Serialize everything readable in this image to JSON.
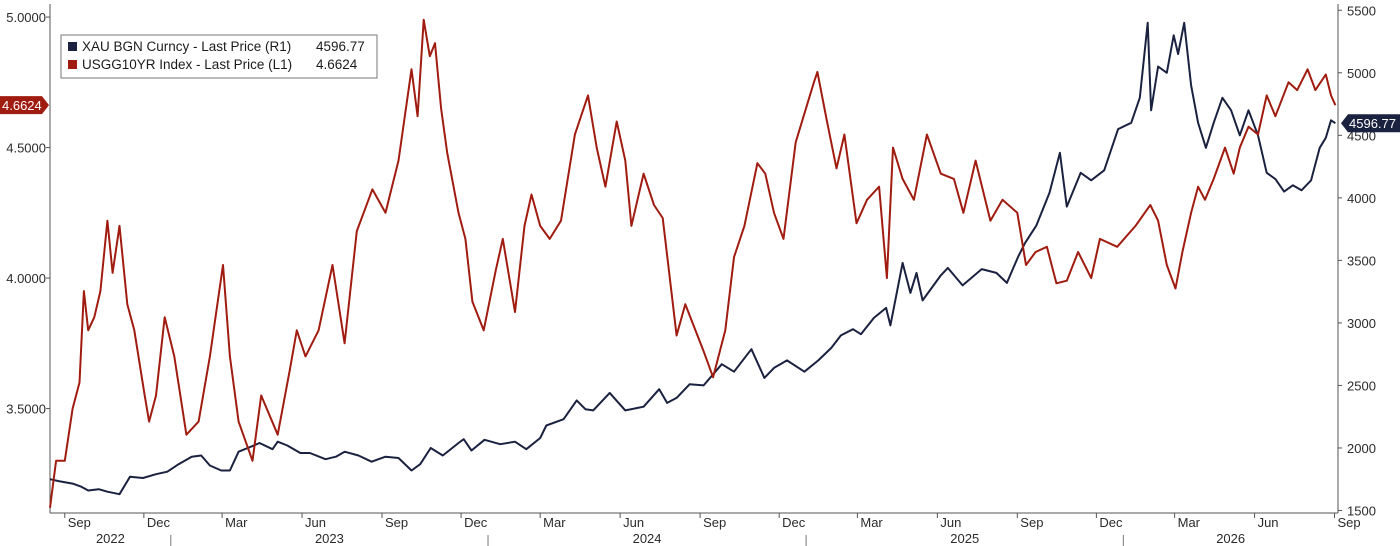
{
  "chart_data": {
    "type": "line",
    "title": "",
    "legend_position": "top-left",
    "grid": false,
    "x_range": [
      "2022-08-15",
      "2026-09-05"
    ],
    "x_month_ticks": [
      "Sep",
      "Dec",
      "Mar",
      "Jun",
      "Sep",
      "Dec",
      "Mar",
      "Jun",
      "Sep",
      "Dec",
      "Mar",
      "Jun",
      "Sep",
      "Dec",
      "Mar",
      "Jun",
      "Sep"
    ],
    "x_year_labels": [
      "2022",
      "2023",
      "2024",
      "2025",
      "2026"
    ],
    "y_left": {
      "ticks": [
        "3.5000",
        "4.0000",
        "4.5000",
        "5.0000"
      ],
      "range": [
        3.1,
        5.05
      ]
    },
    "y_right": {
      "ticks": [
        "1500",
        "2000",
        "2500",
        "3000",
        "3500",
        "4000",
        "4500",
        "5000",
        "5500"
      ],
      "range": [
        1480,
        5550
      ]
    },
    "legend": [
      {
        "label": "XAU BGN Curncy - Last Price (R1)",
        "value": "4596.77"
      },
      {
        "label": "USGG10YR Index - Last Price (L1)",
        "value": "4.6624"
      }
    ],
    "last_value_tags": {
      "left": "4.6624",
      "right": "4596.77"
    },
    "series": [
      {
        "name": "XAU BGN Curncy - Last Price (R1)",
        "axis": "right",
        "color": "#1a2240",
        "points": [
          [
            "2022-08-15",
            1750
          ],
          [
            "2022-08-25",
            1735
          ],
          [
            "2022-09-10",
            1715
          ],
          [
            "2022-09-20",
            1690
          ],
          [
            "2022-09-28",
            1660
          ],
          [
            "2022-10-10",
            1670
          ],
          [
            "2022-10-20",
            1650
          ],
          [
            "2022-11-03",
            1630
          ],
          [
            "2022-11-15",
            1770
          ],
          [
            "2022-11-30",
            1760
          ],
          [
            "2022-12-15",
            1790
          ],
          [
            "2022-12-28",
            1810
          ],
          [
            "2023-01-10",
            1870
          ],
          [
            "2023-01-25",
            1930
          ],
          [
            "2023-02-05",
            1940
          ],
          [
            "2023-02-15",
            1860
          ],
          [
            "2023-02-28",
            1820
          ],
          [
            "2023-03-10",
            1820
          ],
          [
            "2023-03-20",
            1970
          ],
          [
            "2023-04-05",
            2015
          ],
          [
            "2023-04-13",
            2040
          ],
          [
            "2023-04-28",
            1990
          ],
          [
            "2023-05-04",
            2050
          ],
          [
            "2023-05-15",
            2020
          ],
          [
            "2023-05-30",
            1960
          ],
          [
            "2023-06-10",
            1960
          ],
          [
            "2023-06-28",
            1910
          ],
          [
            "2023-07-10",
            1930
          ],
          [
            "2023-07-20",
            1970
          ],
          [
            "2023-08-05",
            1940
          ],
          [
            "2023-08-20",
            1890
          ],
          [
            "2023-09-05",
            1930
          ],
          [
            "2023-09-20",
            1920
          ],
          [
            "2023-10-05",
            1820
          ],
          [
            "2023-10-15",
            1870
          ],
          [
            "2023-10-27",
            2000
          ],
          [
            "2023-11-10",
            1940
          ],
          [
            "2023-11-28",
            2040
          ],
          [
            "2023-12-04",
            2070
          ],
          [
            "2023-12-13",
            1980
          ],
          [
            "2023-12-28",
            2065
          ],
          [
            "2024-01-15",
            2030
          ],
          [
            "2024-02-01",
            2050
          ],
          [
            "2024-02-14",
            1990
          ],
          [
            "2024-03-01",
            2080
          ],
          [
            "2024-03-08",
            2180
          ],
          [
            "2024-03-28",
            2230
          ],
          [
            "2024-04-12",
            2380
          ],
          [
            "2024-04-22",
            2310
          ],
          [
            "2024-05-01",
            2300
          ],
          [
            "2024-05-20",
            2440
          ],
          [
            "2024-06-07",
            2300
          ],
          [
            "2024-06-28",
            2330
          ],
          [
            "2024-07-16",
            2470
          ],
          [
            "2024-07-25",
            2360
          ],
          [
            "2024-08-05",
            2400
          ],
          [
            "2024-08-20",
            2510
          ],
          [
            "2024-09-05",
            2500
          ],
          [
            "2024-09-26",
            2670
          ],
          [
            "2024-10-10",
            2610
          ],
          [
            "2024-10-30",
            2790
          ],
          [
            "2024-11-14",
            2560
          ],
          [
            "2024-11-25",
            2640
          ],
          [
            "2024-12-10",
            2700
          ],
          [
            "2024-12-30",
            2610
          ],
          [
            "2025-01-15",
            2700
          ],
          [
            "2025-01-30",
            2800
          ],
          [
            "2025-02-10",
            2900
          ],
          [
            "2025-02-24",
            2950
          ],
          [
            "2025-03-05",
            2910
          ],
          [
            "2025-03-20",
            3040
          ],
          [
            "2025-04-03",
            3120
          ],
          [
            "2025-04-08",
            2980
          ],
          [
            "2025-04-22",
            3480
          ],
          [
            "2025-05-01",
            3240
          ],
          [
            "2025-05-08",
            3400
          ],
          [
            "2025-05-15",
            3180
          ],
          [
            "2025-06-05",
            3380
          ],
          [
            "2025-06-13",
            3440
          ],
          [
            "2025-06-30",
            3300
          ],
          [
            "2025-07-22",
            3430
          ],
          [
            "2025-08-08",
            3400
          ],
          [
            "2025-08-20",
            3320
          ],
          [
            "2025-09-02",
            3530
          ],
          [
            "2025-09-10",
            3640
          ],
          [
            "2025-09-23",
            3780
          ],
          [
            "2025-10-08",
            4040
          ],
          [
            "2025-10-20",
            4360
          ],
          [
            "2025-10-28",
            3930
          ],
          [
            "2025-11-13",
            4200
          ],
          [
            "2025-11-25",
            4140
          ],
          [
            "2025-12-10",
            4220
          ],
          [
            "2025-12-26",
            4550
          ],
          [
            "2026-01-10",
            4600
          ],
          [
            "2026-01-20",
            4800
          ],
          [
            "2026-01-29",
            5400
          ],
          [
            "2026-02-02",
            4700
          ],
          [
            "2026-02-10",
            5050
          ],
          [
            "2026-02-20",
            5000
          ],
          [
            "2026-02-28",
            5300
          ],
          [
            "2026-03-05",
            5150
          ],
          [
            "2026-03-12",
            5400
          ],
          [
            "2026-03-20",
            4900
          ],
          [
            "2026-03-28",
            4600
          ],
          [
            "2026-04-06",
            4400
          ],
          [
            "2026-04-15",
            4600
          ],
          [
            "2026-04-25",
            4800
          ],
          [
            "2026-05-05",
            4700
          ],
          [
            "2026-05-15",
            4500
          ],
          [
            "2026-05-25",
            4700
          ],
          [
            "2026-06-05",
            4500
          ],
          [
            "2026-06-15",
            4200
          ],
          [
            "2026-06-25",
            4150
          ],
          [
            "2026-07-05",
            4050
          ],
          [
            "2026-07-15",
            4100
          ],
          [
            "2026-07-25",
            4060
          ],
          [
            "2026-08-05",
            4140
          ],
          [
            "2026-08-15",
            4400
          ],
          [
            "2026-08-22",
            4480
          ],
          [
            "2026-08-28",
            4620
          ],
          [
            "2026-09-02",
            4596.77
          ]
        ]
      },
      {
        "name": "USGG10YR Index - Last Price (L1)",
        "axis": "left",
        "color": "#a01c10",
        "points": [
          [
            "2022-08-15",
            3.12
          ],
          [
            "2022-08-22",
            3.3
          ],
          [
            "2022-09-01",
            3.3
          ],
          [
            "2022-09-10",
            3.5
          ],
          [
            "2022-09-18",
            3.6
          ],
          [
            "2022-09-23",
            3.95
          ],
          [
            "2022-09-28",
            3.8
          ],
          [
            "2022-10-05",
            3.85
          ],
          [
            "2022-10-12",
            3.95
          ],
          [
            "2022-10-20",
            4.22
          ],
          [
            "2022-10-26",
            4.02
          ],
          [
            "2022-11-03",
            4.2
          ],
          [
            "2022-11-12",
            3.9
          ],
          [
            "2022-11-20",
            3.8
          ],
          [
            "2022-12-02",
            3.55
          ],
          [
            "2022-12-07",
            3.45
          ],
          [
            "2022-12-15",
            3.55
          ],
          [
            "2022-12-25",
            3.85
          ],
          [
            "2023-01-05",
            3.7
          ],
          [
            "2023-01-19",
            3.4
          ],
          [
            "2023-02-02",
            3.45
          ],
          [
            "2023-02-15",
            3.7
          ],
          [
            "2023-03-02",
            4.05
          ],
          [
            "2023-03-10",
            3.7
          ],
          [
            "2023-03-20",
            3.45
          ],
          [
            "2023-04-05",
            3.3
          ],
          [
            "2023-04-15",
            3.55
          ],
          [
            "2023-05-04",
            3.4
          ],
          [
            "2023-05-18",
            3.65
          ],
          [
            "2023-05-26",
            3.8
          ],
          [
            "2023-06-05",
            3.7
          ],
          [
            "2023-06-20",
            3.8
          ],
          [
            "2023-07-06",
            4.05
          ],
          [
            "2023-07-20",
            3.75
          ],
          [
            "2023-08-03",
            4.18
          ],
          [
            "2023-08-21",
            4.34
          ],
          [
            "2023-09-05",
            4.25
          ],
          [
            "2023-09-20",
            4.45
          ],
          [
            "2023-10-05",
            4.8
          ],
          [
            "2023-10-12",
            4.62
          ],
          [
            "2023-10-19",
            4.99
          ],
          [
            "2023-10-26",
            4.85
          ],
          [
            "2023-11-01",
            4.9
          ],
          [
            "2023-11-08",
            4.65
          ],
          [
            "2023-11-15",
            4.48
          ],
          [
            "2023-11-28",
            4.25
          ],
          [
            "2023-12-06",
            4.15
          ],
          [
            "2023-12-14",
            3.91
          ],
          [
            "2023-12-27",
            3.8
          ],
          [
            "2024-01-10",
            4.03
          ],
          [
            "2024-01-18",
            4.15
          ],
          [
            "2024-02-01",
            3.87
          ],
          [
            "2024-02-12",
            4.2
          ],
          [
            "2024-02-20",
            4.32
          ],
          [
            "2024-03-01",
            4.2
          ],
          [
            "2024-03-12",
            4.15
          ],
          [
            "2024-03-25",
            4.22
          ],
          [
            "2024-04-10",
            4.55
          ],
          [
            "2024-04-25",
            4.7
          ],
          [
            "2024-05-05",
            4.5
          ],
          [
            "2024-05-15",
            4.35
          ],
          [
            "2024-05-28",
            4.6
          ],
          [
            "2024-06-07",
            4.45
          ],
          [
            "2024-06-14",
            4.2
          ],
          [
            "2024-06-28",
            4.4
          ],
          [
            "2024-07-10",
            4.28
          ],
          [
            "2024-07-20",
            4.23
          ],
          [
            "2024-08-05",
            3.78
          ],
          [
            "2024-08-15",
            3.9
          ],
          [
            "2024-09-05",
            3.72
          ],
          [
            "2024-09-16",
            3.62
          ],
          [
            "2024-09-30",
            3.8
          ],
          [
            "2024-10-10",
            4.08
          ],
          [
            "2024-10-22",
            4.2
          ],
          [
            "2024-11-06",
            4.44
          ],
          [
            "2024-11-15",
            4.4
          ],
          [
            "2024-11-25",
            4.25
          ],
          [
            "2024-12-06",
            4.15
          ],
          [
            "2024-12-20",
            4.52
          ],
          [
            "2025-01-10",
            4.75
          ],
          [
            "2025-01-14",
            4.79
          ],
          [
            "2025-01-25",
            4.6
          ],
          [
            "2025-02-05",
            4.42
          ],
          [
            "2025-02-14",
            4.55
          ],
          [
            "2025-02-28",
            4.21
          ],
          [
            "2025-03-12",
            4.3
          ],
          [
            "2025-03-26",
            4.35
          ],
          [
            "2025-04-04",
            4.0
          ],
          [
            "2025-04-11",
            4.5
          ],
          [
            "2025-04-22",
            4.38
          ],
          [
            "2025-05-05",
            4.3
          ],
          [
            "2025-05-20",
            4.55
          ],
          [
            "2025-06-05",
            4.4
          ],
          [
            "2025-06-20",
            4.38
          ],
          [
            "2025-07-01",
            4.25
          ],
          [
            "2025-07-15",
            4.45
          ],
          [
            "2025-08-01",
            4.22
          ],
          [
            "2025-08-15",
            4.3
          ],
          [
            "2025-09-01",
            4.25
          ],
          [
            "2025-09-11",
            4.05
          ],
          [
            "2025-09-22",
            4.1
          ],
          [
            "2025-10-05",
            4.12
          ],
          [
            "2025-10-16",
            3.98
          ],
          [
            "2025-10-28",
            3.99
          ],
          [
            "2025-11-10",
            4.1
          ],
          [
            "2025-11-25",
            4.0
          ],
          [
            "2025-12-05",
            4.15
          ],
          [
            "2025-12-25",
            4.12
          ],
          [
            "2026-01-15",
            4.2
          ],
          [
            "2026-02-01",
            4.28
          ],
          [
            "2026-02-10",
            4.22
          ],
          [
            "2026-02-20",
            4.05
          ],
          [
            "2026-03-02",
            3.96
          ],
          [
            "2026-03-10",
            4.1
          ],
          [
            "2026-03-20",
            4.25
          ],
          [
            "2026-03-28",
            4.35
          ],
          [
            "2026-04-05",
            4.3
          ],
          [
            "2026-04-15",
            4.38
          ],
          [
            "2026-04-28",
            4.5
          ],
          [
            "2026-05-08",
            4.4
          ],
          [
            "2026-05-15",
            4.5
          ],
          [
            "2026-05-25",
            4.58
          ],
          [
            "2026-06-05",
            4.55
          ],
          [
            "2026-06-15",
            4.7
          ],
          [
            "2026-06-25",
            4.62
          ],
          [
            "2026-07-10",
            4.75
          ],
          [
            "2026-07-20",
            4.72
          ],
          [
            "2026-08-01",
            4.8
          ],
          [
            "2026-08-10",
            4.72
          ],
          [
            "2026-08-22",
            4.78
          ],
          [
            "2026-08-28",
            4.7
          ],
          [
            "2026-09-02",
            4.6624
          ]
        ]
      }
    ]
  }
}
